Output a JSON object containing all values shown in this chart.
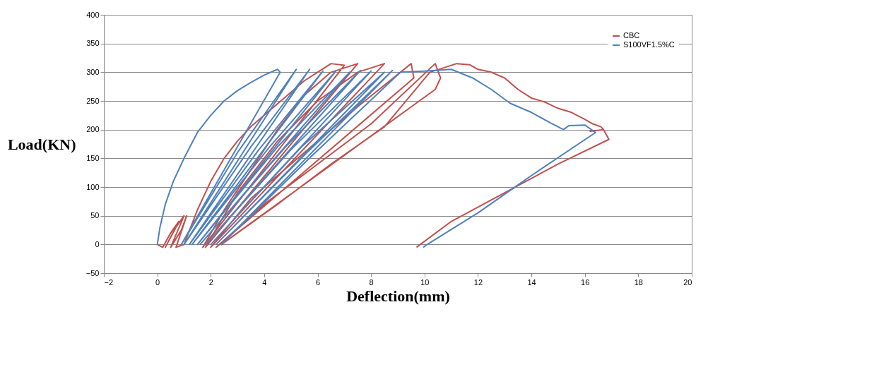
{
  "chart_data": {
    "type": "line",
    "xlabel": "Deflection(mm)",
    "ylabel": "Load(KN)",
    "xlim": [
      -2,
      20
    ],
    "xticks": [
      -2,
      0,
      2,
      4,
      6,
      8,
      10,
      12,
      14,
      16,
      18,
      20
    ],
    "ylim": [
      -50,
      400
    ],
    "yticks": [
      -50,
      0,
      50,
      100,
      150,
      200,
      250,
      300,
      350,
      400
    ],
    "grid": "y",
    "legend": "top right",
    "marker": "none",
    "line_style": "solid",
    "series": [
      {
        "name": "CBC",
        "color": "#c0504d",
        "x": [
          0,
          0.2,
          0.5,
          0.8,
          0.3,
          0.7,
          1.0,
          0.5,
          0.9,
          1.1,
          0.7,
          1.0,
          1.5,
          2.0,
          2.5,
          3.0,
          3.5,
          4.0,
          4.5,
          5.0,
          5.5,
          6.0,
          6.5,
          7.0,
          1.7,
          2.5,
          3.5,
          4.5,
          5.5,
          6.5,
          7.5,
          1.8,
          3.0,
          4.5,
          6.0,
          7.5,
          8.5,
          2.0,
          3.5,
          5.5,
          7.5,
          9.5,
          9.6,
          2.2,
          4.0,
          6.0,
          8.0,
          10.4,
          10.6,
          10.4,
          2.4,
          4.5,
          6.5,
          8.5,
          10.2,
          11.2,
          11.7,
          12.0,
          12.5,
          13.0,
          13.5,
          14.0,
          14.5,
          15.0,
          15.5,
          16.0,
          16.3,
          16.6,
          16.7,
          16.2,
          16.7,
          16.9,
          15.0,
          13.0,
          11.0,
          9.7
        ],
        "values": [
          0,
          -5,
          20,
          40,
          -5,
          30,
          50,
          -5,
          25,
          50,
          -5,
          0,
          60,
          110,
          150,
          180,
          205,
          225,
          245,
          265,
          285,
          300,
          315,
          312,
          -5,
          60,
          130,
          200,
          260,
          300,
          315,
          -5,
          90,
          180,
          250,
          300,
          315,
          -5,
          80,
          160,
          240,
          315,
          290,
          -5,
          70,
          140,
          210,
          315,
          290,
          270,
          0,
          70,
          140,
          205,
          300,
          315,
          313,
          305,
          300,
          290,
          270,
          255,
          248,
          237,
          230,
          218,
          210,
          205,
          200,
          197,
          200,
          183,
          140,
          90,
          40,
          -5
        ]
      },
      {
        "name": "S100VF1.5%C",
        "color": "#4f81bd",
        "x": [
          0,
          0.1,
          0.3,
          0.6,
          1.0,
          1.5,
          2.0,
          2.5,
          3.0,
          3.5,
          4.0,
          4.5,
          4.6,
          0.9,
          3.0,
          5.2,
          1.0,
          3.5,
          5.7,
          1.2,
          3.8,
          6.2,
          1.3,
          4.2,
          6.7,
          1.5,
          4.5,
          7.2,
          1.6,
          4.8,
          7.6,
          1.8,
          5.0,
          8.0,
          2.0,
          5.4,
          8.5,
          2.2,
          5.6,
          8.8,
          2.4,
          5.8,
          9.1,
          10.0,
          11.0,
          11.8,
          12.5,
          13.2,
          14.0,
          14.7,
          15.2,
          15.4,
          16.0,
          16.4,
          14.0,
          12.0,
          10.1,
          9.95
        ],
        "values": [
          0,
          30,
          70,
          110,
          150,
          195,
          225,
          250,
          268,
          282,
          295,
          305,
          300,
          0,
          160,
          305,
          0,
          170,
          305,
          0,
          165,
          302,
          0,
          170,
          303,
          0,
          170,
          300,
          0,
          170,
          303,
          0,
          165,
          302,
          0,
          170,
          300,
          0,
          160,
          303,
          0,
          155,
          300,
          302,
          305,
          290,
          270,
          246,
          230,
          212,
          200,
          207,
          208,
          195,
          120,
          55,
          0,
          -5
        ]
      }
    ]
  }
}
